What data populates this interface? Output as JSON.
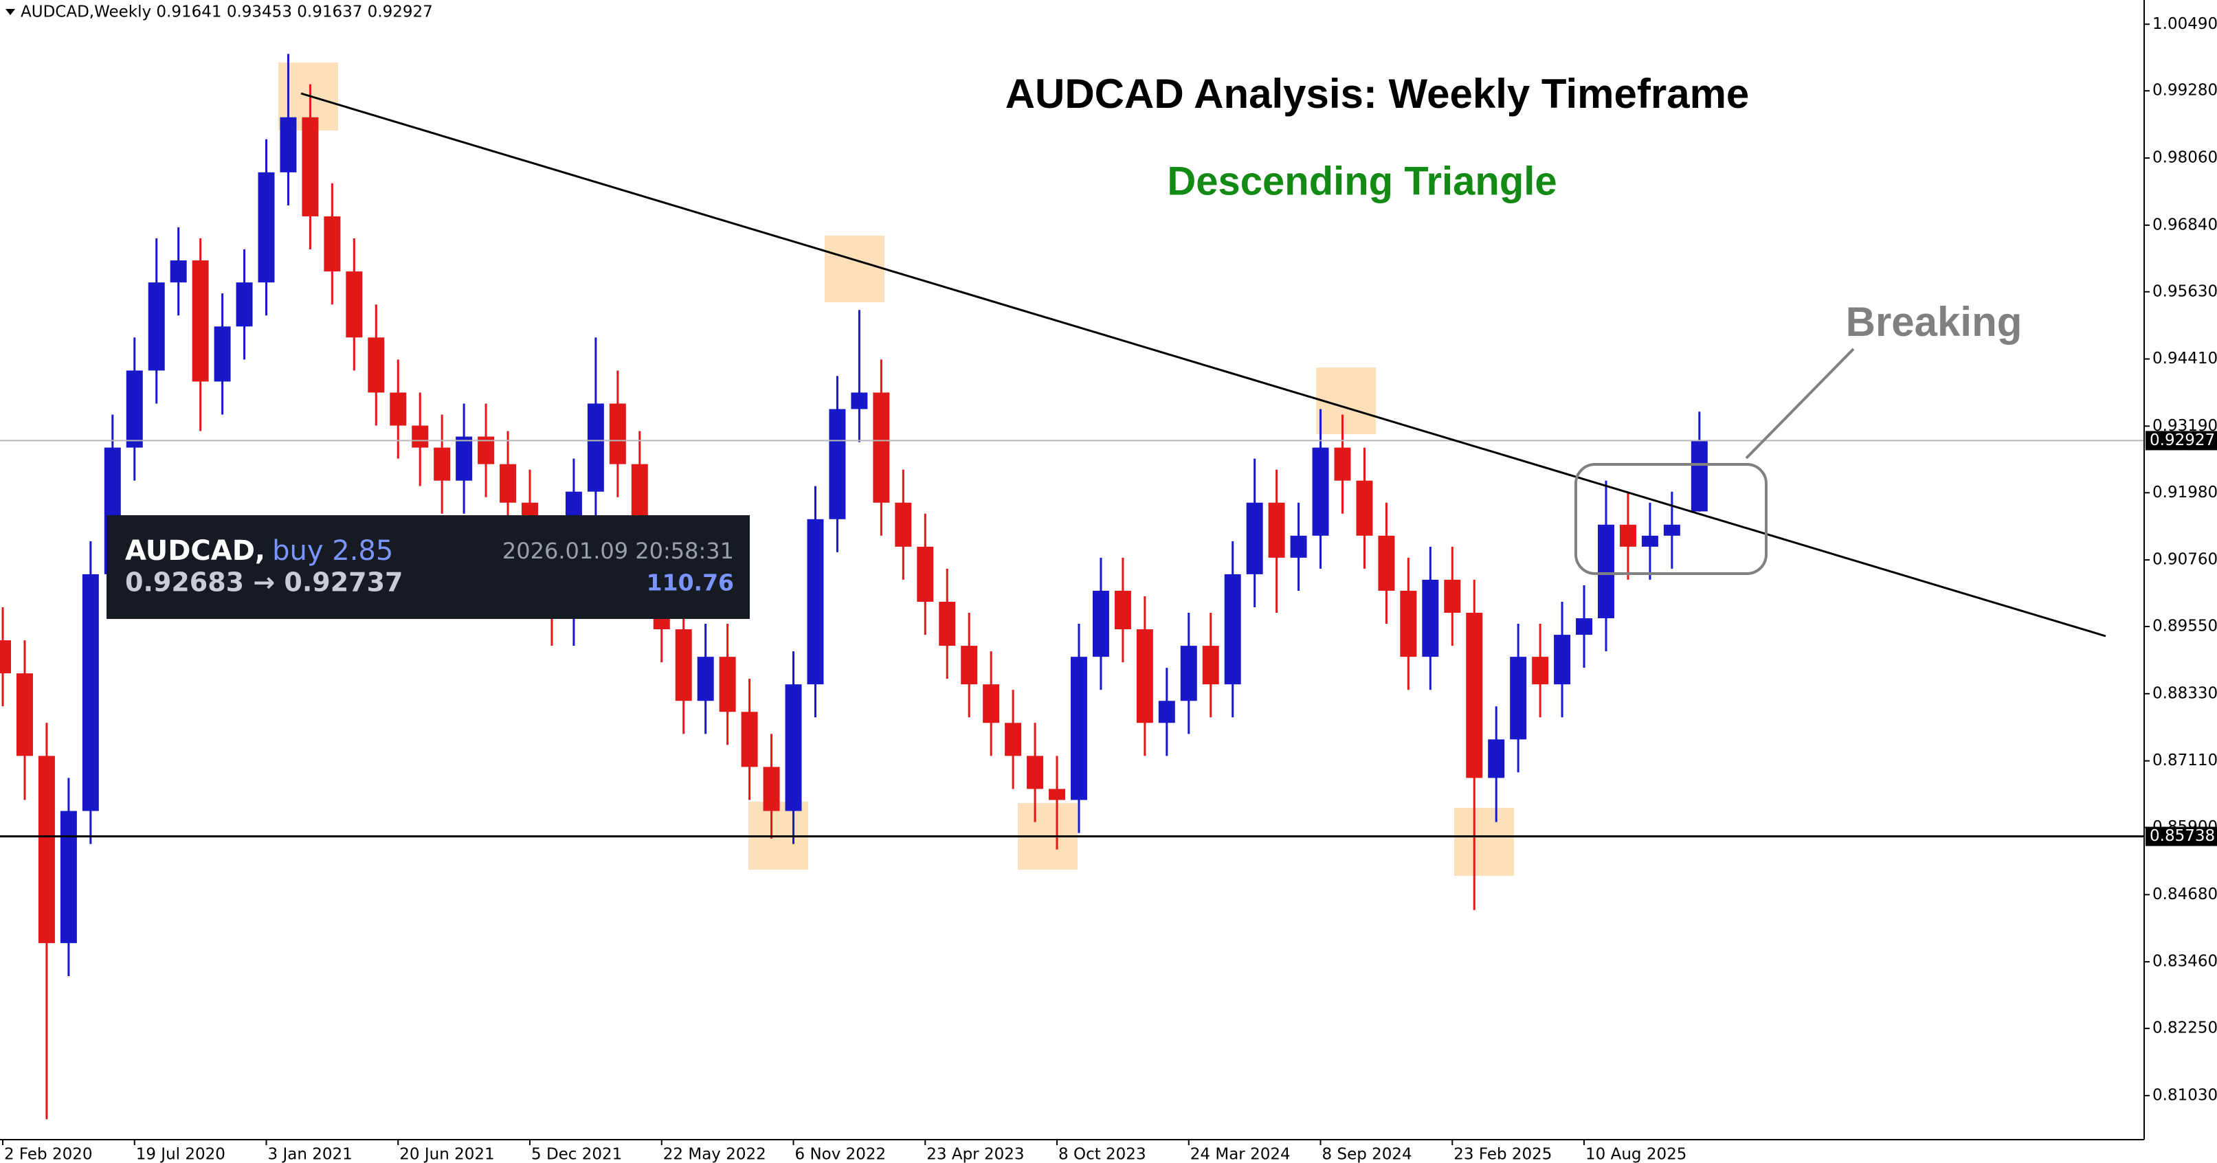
{
  "chart_data": {
    "type": "candlestick",
    "header": "AUDCAD,Weekly 0.91641 0.93453 0.91637 0.92927",
    "title": "AUDCAD Analysis: Weekly Timeframe",
    "subtitle": "Descending Triangle",
    "annotation": "Breaking",
    "up_color": "#1818c8",
    "down_color": "#e01818",
    "x": [
      0,
      4,
      8,
      12,
      16,
      20,
      24,
      28,
      32,
      36,
      40,
      44,
      48,
      52,
      56,
      60,
      64,
      68,
      72,
      76,
      80,
      84,
      88,
      92,
      96,
      100,
      104,
      108,
      112,
      116,
      120,
      124,
      128,
      132,
      136,
      140,
      144,
      148,
      152,
      156,
      160,
      164,
      168,
      172,
      176,
      180,
      184,
      188,
      192,
      196,
      200,
      204,
      208,
      212,
      216,
      220,
      224,
      228,
      232,
      236,
      240,
      244,
      248,
      252,
      256,
      260,
      264,
      268,
      272,
      276,
      280,
      284,
      288,
      292,
      296,
      300,
      304,
      309
    ],
    "open": [
      0.893,
      0.887,
      0.872,
      0.838,
      0.862,
      0.905,
      0.928,
      0.942,
      0.958,
      0.962,
      0.94,
      0.95,
      0.958,
      0.978,
      0.988,
      0.97,
      0.96,
      0.948,
      0.938,
      0.932,
      0.928,
      0.922,
      0.93,
      0.925,
      0.918,
      0.905,
      0.898,
      0.92,
      0.936,
      0.925,
      0.905,
      0.895,
      0.882,
      0.89,
      0.88,
      0.87,
      0.862,
      0.885,
      0.915,
      0.935,
      0.938,
      0.918,
      0.91,
      0.9,
      0.892,
      0.885,
      0.878,
      0.872,
      0.866,
      0.864,
      0.89,
      0.902,
      0.895,
      0.878,
      0.882,
      0.892,
      0.885,
      0.905,
      0.918,
      0.908,
      0.912,
      0.928,
      0.922,
      0.912,
      0.902,
      0.89,
      0.904,
      0.898,
      0.868,
      0.875,
      0.89,
      0.885,
      0.894,
      0.897,
      0.914,
      0.91,
      0.912,
      0.91641
    ],
    "high": [
      0.899,
      0.893,
      0.878,
      0.868,
      0.911,
      0.934,
      0.948,
      0.966,
      0.968,
      0.966,
      0.956,
      0.964,
      0.984,
      0.9995,
      0.994,
      0.976,
      0.966,
      0.954,
      0.944,
      0.938,
      0.934,
      0.936,
      0.936,
      0.931,
      0.924,
      0.911,
      0.926,
      0.948,
      0.942,
      0.931,
      0.911,
      0.901,
      0.896,
      0.896,
      0.886,
      0.876,
      0.891,
      0.921,
      0.941,
      0.953,
      0.944,
      0.924,
      0.916,
      0.906,
      0.898,
      0.891,
      0.884,
      0.878,
      0.872,
      0.896,
      0.908,
      0.908,
      0.901,
      0.888,
      0.898,
      0.898,
      0.911,
      0.926,
      0.924,
      0.918,
      0.935,
      0.934,
      0.928,
      0.918,
      0.908,
      0.91,
      0.91,
      0.904,
      0.881,
      0.896,
      0.896,
      0.9,
      0.903,
      0.922,
      0.92,
      0.918,
      0.92,
      0.93453
    ],
    "low": [
      0.881,
      0.864,
      0.806,
      0.832,
      0.856,
      0.899,
      0.922,
      0.936,
      0.952,
      0.931,
      0.934,
      0.944,
      0.952,
      0.972,
      0.964,
      0.954,
      0.942,
      0.932,
      0.926,
      0.921,
      0.916,
      0.916,
      0.919,
      0.912,
      0.897,
      0.892,
      0.892,
      0.914,
      0.919,
      0.899,
      0.889,
      0.876,
      0.876,
      0.874,
      0.864,
      0.857,
      0.856,
      0.879,
      0.909,
      0.929,
      0.912,
      0.904,
      0.894,
      0.886,
      0.879,
      0.872,
      0.866,
      0.86,
      0.855,
      0.858,
      0.884,
      0.889,
      0.872,
      0.872,
      0.876,
      0.879,
      0.879,
      0.899,
      0.898,
      0.902,
      0.906,
      0.916,
      0.906,
      0.896,
      0.884,
      0.884,
      0.892,
      0.844,
      0.86,
      0.869,
      0.879,
      0.879,
      0.888,
      0.891,
      0.904,
      0.904,
      0.906,
      0.91637
    ],
    "close": [
      0.887,
      0.872,
      0.838,
      0.862,
      0.905,
      0.928,
      0.942,
      0.958,
      0.962,
      0.94,
      0.95,
      0.958,
      0.978,
      0.988,
      0.97,
      0.96,
      0.948,
      0.938,
      0.932,
      0.928,
      0.922,
      0.93,
      0.925,
      0.918,
      0.905,
      0.898,
      0.92,
      0.936,
      0.925,
      0.905,
      0.895,
      0.882,
      0.89,
      0.88,
      0.87,
      0.862,
      0.885,
      0.915,
      0.935,
      0.938,
      0.918,
      0.91,
      0.9,
      0.892,
      0.885,
      0.878,
      0.872,
      0.866,
      0.864,
      0.89,
      0.902,
      0.895,
      0.878,
      0.882,
      0.892,
      0.885,
      0.905,
      0.918,
      0.908,
      0.912,
      0.928,
      0.922,
      0.912,
      0.902,
      0.89,
      0.904,
      0.898,
      0.868,
      0.875,
      0.89,
      0.885,
      0.894,
      0.897,
      0.914,
      0.91,
      0.912,
      0.914,
      0.92927
    ],
    "xlim": [
      -0.5,
      390
    ],
    "xticks": [
      {
        "value": 0,
        "label": "2 Feb 2020"
      },
      {
        "value": 24,
        "label": "19 Jul 2020"
      },
      {
        "value": 48,
        "label": "3 Jan 2021"
      },
      {
        "value": 72,
        "label": "20 Jun 2021"
      },
      {
        "value": 96,
        "label": "5 Dec 2021"
      },
      {
        "value": 120,
        "label": "22 May 2022"
      },
      {
        "value": 144,
        "label": "6 Nov 2022"
      },
      {
        "value": 168,
        "label": "23 Apr 2023"
      },
      {
        "value": 192,
        "label": "8 Oct 2023"
      },
      {
        "value": 216,
        "label": "24 Mar 2024"
      },
      {
        "value": 240,
        "label": "8 Sep 2024"
      },
      {
        "value": 264,
        "label": "23 Feb 2025"
      },
      {
        "value": 288,
        "label": "10 Aug 2025"
      }
    ],
    "ylim": [
      0.8023,
      1.0093
    ],
    "yticks": [
      {
        "value": 1.0049,
        "label": "1.00490"
      },
      {
        "value": 0.9928,
        "label": "0.99280"
      },
      {
        "value": 0.9806,
        "label": "0.98060"
      },
      {
        "value": 0.9684,
        "label": "0.96840"
      },
      {
        "value": 0.9563,
        "label": "0.95630"
      },
      {
        "value": 0.9441,
        "label": "0.94410"
      },
      {
        "value": 0.9319,
        "label": "0.93190"
      },
      {
        "value": 0.9198,
        "label": "0.91980"
      },
      {
        "value": 0.9076,
        "label": "0.90760"
      },
      {
        "value": 0.8955,
        "label": "0.89550"
      },
      {
        "value": 0.8833,
        "label": "0.88330"
      },
      {
        "value": 0.8711,
        "label": "0.87110"
      },
      {
        "value": 0.859,
        "label": "0.85900"
      },
      {
        "value": 0.8468,
        "label": "0.84680"
      },
      {
        "value": 0.8346,
        "label": "0.83460"
      },
      {
        "value": 0.8225,
        "label": "0.82250"
      },
      {
        "value": 0.8103,
        "label": "0.81030"
      }
    ],
    "current_price": 0.92927,
    "support": 0.85738,
    "trade": {
      "symbol": "AUDCAD,",
      "side": "buy 2.85",
      "time": "2026.01.09 20:58:31",
      "prices": "0.92683 → 0.92737",
      "profit": 110.76
    }
  }
}
